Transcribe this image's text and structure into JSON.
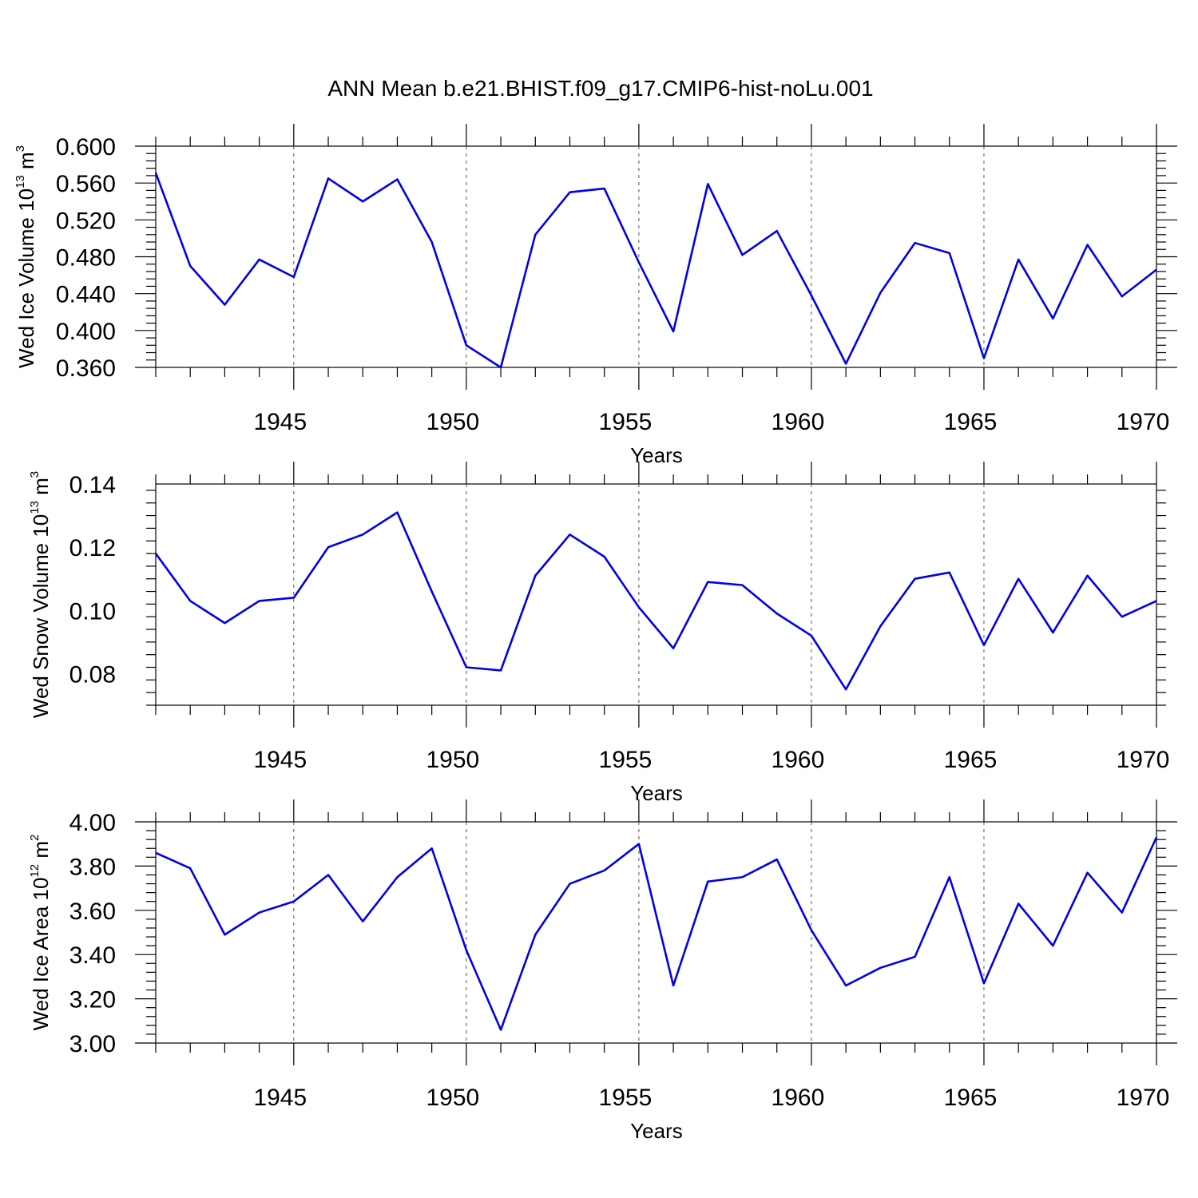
{
  "title": "ANN Mean b.e21.BHIST.f09_g17.CMIP6-hist-noLu.001",
  "chart_data": [
    {
      "type": "line",
      "ylabel": {
        "main": "Wed Ice Volume 10",
        "exp": "13",
        "unit": " m",
        "unit_exp": "3"
      },
      "xlabel": "Years",
      "xlim": [
        1941,
        1970
      ],
      "ylim": [
        0.36,
        0.6
      ],
      "yticks": [
        0.36,
        0.4,
        0.44,
        0.48,
        0.52,
        0.56,
        0.6
      ],
      "ytick_labels": [
        "0.360",
        "0.400",
        "0.440",
        "0.480",
        "0.520",
        "0.560",
        "0.600"
      ],
      "xticks": [
        1945,
        1950,
        1955,
        1960,
        1965,
        1970
      ],
      "xtick_labels": [
        "1945",
        "1950",
        "1955",
        "1960",
        "1965",
        "1970"
      ],
      "grid": "vertical dashed at major x ticks",
      "x": [
        1941,
        1942,
        1943,
        1944,
        1945,
        1946,
        1947,
        1948,
        1949,
        1950,
        1951,
        1952,
        1953,
        1954,
        1955,
        1956,
        1957,
        1958,
        1959,
        1960,
        1961,
        1962,
        1963,
        1964,
        1965,
        1966,
        1967,
        1968,
        1969,
        1970
      ],
      "series": [
        {
          "color": "#0000ee",
          "values": [
            0.571,
            0.47,
            0.428,
            0.477,
            0.458,
            0.565,
            0.54,
            0.564,
            0.496,
            0.384,
            0.36,
            0.504,
            0.55,
            0.554,
            0.474,
            0.399,
            0.559,
            0.482,
            0.508,
            0.438,
            0.364,
            0.441,
            0.495,
            0.484,
            0.37,
            0.477,
            0.413,
            0.493,
            0.437,
            0.466
          ]
        }
      ]
    },
    {
      "type": "line",
      "ylabel": {
        "main": "Wed Snow Volume 10",
        "exp": "13",
        "unit": " m",
        "unit_exp": "3"
      },
      "xlabel": "Years",
      "xlim": [
        1941,
        1970
      ],
      "ylim": [
        0.07,
        0.14
      ],
      "yticks": [
        0.08,
        0.1,
        0.12,
        0.14
      ],
      "ytick_labels": [
        "0.08",
        "0.10",
        "0.12",
        "0.14"
      ],
      "xticks": [
        1945,
        1950,
        1955,
        1960,
        1965,
        1970
      ],
      "xtick_labels": [
        "1945",
        "1950",
        "1955",
        "1960",
        "1965",
        "1970"
      ],
      "grid": "vertical dashed at major x ticks",
      "x": [
        1941,
        1942,
        1943,
        1944,
        1945,
        1946,
        1947,
        1948,
        1949,
        1950,
        1951,
        1952,
        1953,
        1954,
        1955,
        1956,
        1957,
        1958,
        1959,
        1960,
        1961,
        1962,
        1963,
        1964,
        1965,
        1966,
        1967,
        1968,
        1969,
        1970
      ],
      "series": [
        {
          "color": "#0000ee",
          "values": [
            0.118,
            0.103,
            0.096,
            0.103,
            0.104,
            0.12,
            0.124,
            0.131,
            0.106,
            0.082,
            0.081,
            0.111,
            0.124,
            0.117,
            0.101,
            0.088,
            0.109,
            0.108,
            0.099,
            0.092,
            0.075,
            0.095,
            0.11,
            0.112,
            0.089,
            0.11,
            0.093,
            0.111,
            0.098,
            0.103
          ]
        }
      ]
    },
    {
      "type": "line",
      "ylabel": {
        "main": "Wed Ice Area 10",
        "exp": "12",
        "unit": " m",
        "unit_exp": "2"
      },
      "xlabel": "Years",
      "xlim": [
        1941,
        1970
      ],
      "ylim": [
        3.0,
        4.0
      ],
      "yticks": [
        3.0,
        3.2,
        3.4,
        3.6,
        3.8,
        4.0
      ],
      "ytick_labels": [
        "3.00",
        "3.20",
        "3.40",
        "3.60",
        "3.80",
        "4.00"
      ],
      "xticks": [
        1945,
        1950,
        1955,
        1960,
        1965,
        1970
      ],
      "xtick_labels": [
        "1945",
        "1950",
        "1955",
        "1960",
        "1965",
        "1970"
      ],
      "grid": "vertical dashed at major x ticks",
      "x": [
        1941,
        1942,
        1943,
        1944,
        1945,
        1946,
        1947,
        1948,
        1949,
        1950,
        1951,
        1952,
        1953,
        1954,
        1955,
        1956,
        1957,
        1958,
        1959,
        1960,
        1961,
        1962,
        1963,
        1964,
        1965,
        1966,
        1967,
        1968,
        1969,
        1970
      ],
      "series": [
        {
          "color": "#0000ee",
          "values": [
            3.86,
            3.79,
            3.49,
            3.59,
            3.64,
            3.76,
            3.55,
            3.75,
            3.88,
            3.42,
            3.06,
            3.49,
            3.72,
            3.78,
            3.9,
            3.26,
            3.73,
            3.75,
            3.83,
            3.51,
            3.26,
            3.34,
            3.39,
            3.75,
            3.27,
            3.63,
            3.44,
            3.77,
            3.59,
            3.93
          ]
        }
      ]
    }
  ]
}
